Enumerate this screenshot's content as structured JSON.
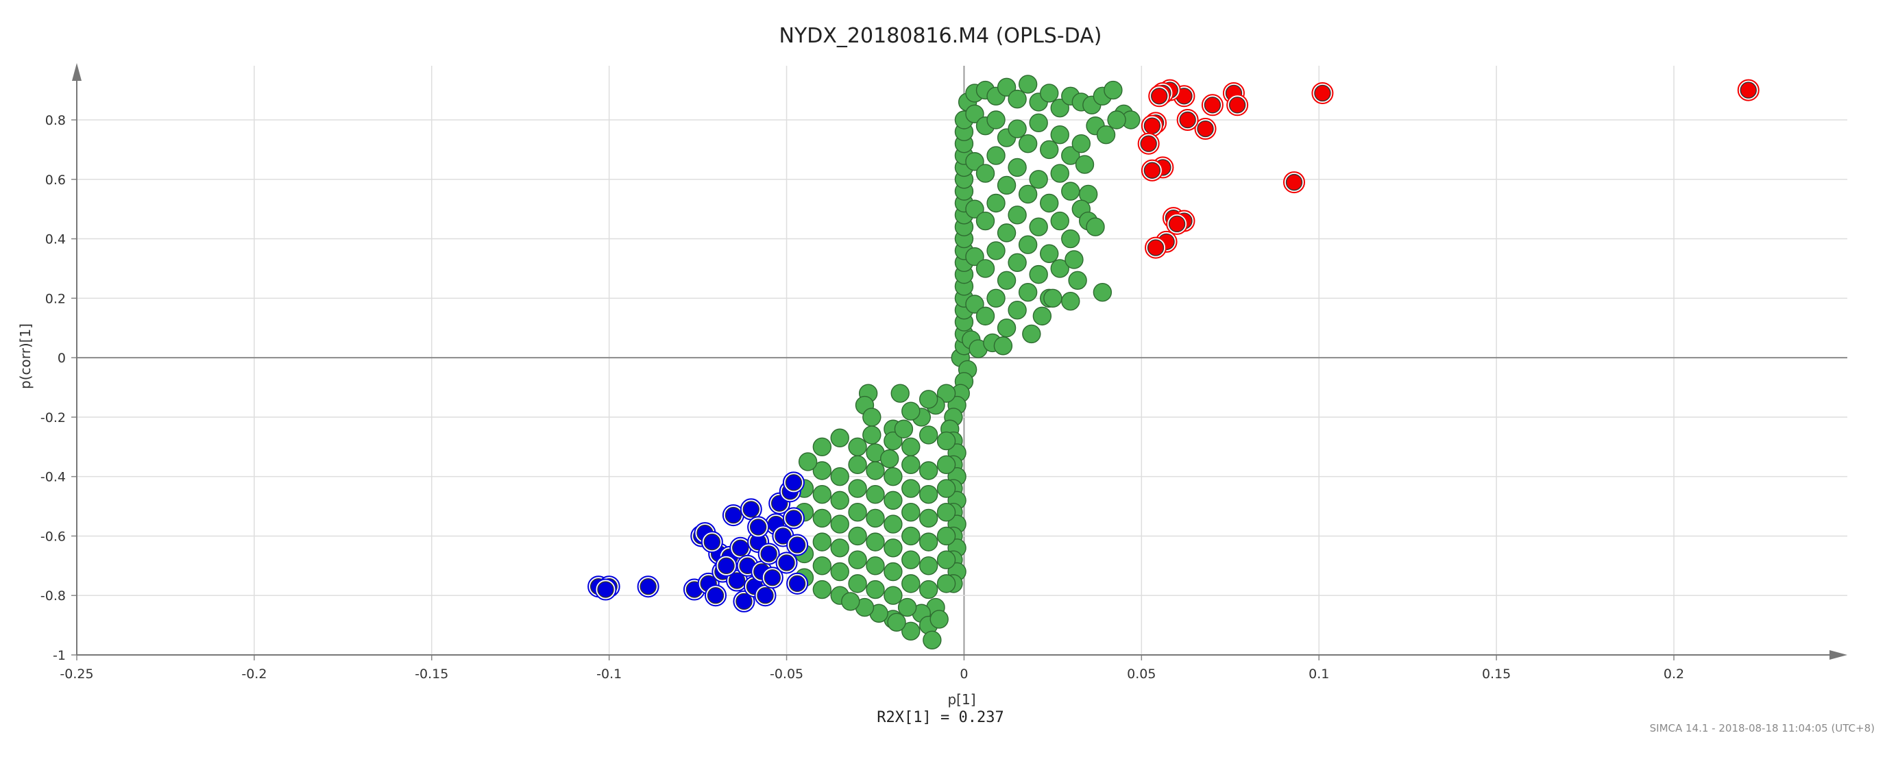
{
  "chart_data": {
    "type": "scatter",
    "title": "NYDX_20180816.M4 (OPLS-DA)",
    "xlabel": "p[1]",
    "ylabel": "p(corr)[1]",
    "xlim": [
      -0.25,
      0.245
    ],
    "ylim": [
      -1.0,
      0.95
    ],
    "x_ticks": [
      -0.25,
      -0.2,
      -0.15,
      -0.1,
      -0.05,
      0,
      0.05,
      0.1,
      0.15,
      0.2
    ],
    "x_tick_labels": [
      "-0.25",
      "-0.2",
      "-0.15",
      "-0.1",
      "-0.05",
      "0",
      "0.05",
      "0.1",
      "0.15",
      "0.2"
    ],
    "y_ticks": [
      -1.0,
      -0.8,
      -0.6,
      -0.4,
      -0.2,
      0.0,
      0.2,
      0.4,
      0.6,
      0.8
    ],
    "y_tick_labels": [
      "-1",
      "-0.8",
      "-0.6",
      "-0.4",
      "-0.2",
      "0",
      "0.2",
      "0.4",
      "0.6",
      "0.8"
    ],
    "grid": true,
    "annotation": "R2X[1] = 0.237",
    "footer": "SIMCA 14.1 - 2018-08-18 11:04:05 (UTC+8)",
    "series": [
      {
        "color": "#f20000",
        "points": [
          [
            0.221,
            0.9
          ],
          [
            0.101,
            0.89
          ],
          [
            0.093,
            0.59
          ],
          [
            0.076,
            0.89
          ],
          [
            0.077,
            0.85
          ],
          [
            0.07,
            0.85
          ],
          [
            0.068,
            0.77
          ],
          [
            0.063,
            0.8
          ],
          [
            0.062,
            0.88
          ],
          [
            0.058,
            0.9
          ],
          [
            0.056,
            0.89
          ],
          [
            0.055,
            0.88
          ],
          [
            0.054,
            0.79
          ],
          [
            0.053,
            0.78
          ],
          [
            0.052,
            0.72
          ],
          [
            0.056,
            0.64
          ],
          [
            0.053,
            0.63
          ],
          [
            0.059,
            0.47
          ],
          [
            0.062,
            0.46
          ],
          [
            0.06,
            0.45
          ],
          [
            0.057,
            0.39
          ],
          [
            0.054,
            0.37
          ]
        ]
      },
      {
        "color": "#0000dc",
        "points": [
          [
            -0.103,
            -0.77
          ],
          [
            -0.1,
            -0.77
          ],
          [
            -0.101,
            -0.78
          ],
          [
            -0.089,
            -0.77
          ],
          [
            -0.076,
            -0.78
          ],
          [
            -0.074,
            -0.6
          ],
          [
            -0.073,
            -0.59
          ],
          [
            -0.072,
            -0.76
          ],
          [
            -0.07,
            -0.8
          ],
          [
            -0.069,
            -0.66
          ],
          [
            -0.068,
            -0.72
          ],
          [
            -0.066,
            -0.67
          ],
          [
            -0.065,
            -0.53
          ],
          [
            -0.064,
            -0.75
          ],
          [
            -0.063,
            -0.64
          ],
          [
            -0.062,
            -0.82
          ],
          [
            -0.061,
            -0.7
          ],
          [
            -0.06,
            -0.51
          ],
          [
            -0.059,
            -0.77
          ],
          [
            -0.058,
            -0.62
          ],
          [
            -0.057,
            -0.72
          ],
          [
            -0.056,
            -0.8
          ],
          [
            -0.055,
            -0.66
          ],
          [
            -0.054,
            -0.74
          ],
          [
            -0.053,
            -0.56
          ],
          [
            -0.052,
            -0.49
          ],
          [
            -0.051,
            -0.6
          ],
          [
            -0.05,
            -0.69
          ],
          [
            -0.049,
            -0.45
          ],
          [
            -0.048,
            -0.54
          ],
          [
            -0.048,
            -0.42
          ],
          [
            -0.047,
            -0.76
          ],
          [
            -0.047,
            -0.63
          ],
          [
            -0.058,
            -0.57
          ],
          [
            -0.067,
            -0.7
          ],
          [
            -0.071,
            -0.62
          ]
        ]
      },
      {
        "color": "#4caf50",
        "points": [
          [
            -0.001,
            0.0
          ],
          [
            0.0,
            0.04
          ],
          [
            0.0,
            0.08
          ],
          [
            0.0,
            0.12
          ],
          [
            0.0,
            0.16
          ],
          [
            0.0,
            0.2
          ],
          [
            0.0,
            0.24
          ],
          [
            0.0,
            0.28
          ],
          [
            0.0,
            0.32
          ],
          [
            0.0,
            0.36
          ],
          [
            0.0,
            0.4
          ],
          [
            0.0,
            0.44
          ],
          [
            0.0,
            0.48
          ],
          [
            0.0,
            0.52
          ],
          [
            0.0,
            0.56
          ],
          [
            0.0,
            0.6
          ],
          [
            0.0,
            0.64
          ],
          [
            0.0,
            0.68
          ],
          [
            0.0,
            0.72
          ],
          [
            0.0,
            0.76
          ],
          [
            0.0,
            0.8
          ],
          [
            0.001,
            0.86
          ],
          [
            0.003,
            0.89
          ],
          [
            0.006,
            0.9
          ],
          [
            0.009,
            0.88
          ],
          [
            0.012,
            0.91
          ],
          [
            0.015,
            0.87
          ],
          [
            0.018,
            0.92
          ],
          [
            0.021,
            0.86
          ],
          [
            0.024,
            0.89
          ],
          [
            0.027,
            0.84
          ],
          [
            0.03,
            0.88
          ],
          [
            0.033,
            0.86
          ],
          [
            0.036,
            0.85
          ],
          [
            0.039,
            0.88
          ],
          [
            0.042,
            0.9
          ],
          [
            0.045,
            0.82
          ],
          [
            0.047,
            0.8
          ],
          [
            0.003,
            0.82
          ],
          [
            0.006,
            0.78
          ],
          [
            0.009,
            0.8
          ],
          [
            0.012,
            0.74
          ],
          [
            0.015,
            0.77
          ],
          [
            0.018,
            0.72
          ],
          [
            0.021,
            0.79
          ],
          [
            0.024,
            0.7
          ],
          [
            0.027,
            0.75
          ],
          [
            0.03,
            0.68
          ],
          [
            0.033,
            0.72
          ],
          [
            0.037,
            0.78
          ],
          [
            0.04,
            0.75
          ],
          [
            0.043,
            0.8
          ],
          [
            0.003,
            0.66
          ],
          [
            0.006,
            0.62
          ],
          [
            0.009,
            0.68
          ],
          [
            0.012,
            0.58
          ],
          [
            0.015,
            0.64
          ],
          [
            0.018,
            0.55
          ],
          [
            0.021,
            0.6
          ],
          [
            0.024,
            0.52
          ],
          [
            0.027,
            0.62
          ],
          [
            0.03,
            0.56
          ],
          [
            0.034,
            0.65
          ],
          [
            0.035,
            0.55
          ],
          [
            0.003,
            0.5
          ],
          [
            0.006,
            0.46
          ],
          [
            0.009,
            0.52
          ],
          [
            0.012,
            0.42
          ],
          [
            0.015,
            0.48
          ],
          [
            0.018,
            0.38
          ],
          [
            0.021,
            0.44
          ],
          [
            0.024,
            0.35
          ],
          [
            0.027,
            0.46
          ],
          [
            0.03,
            0.4
          ],
          [
            0.033,
            0.5
          ],
          [
            0.035,
            0.46
          ],
          [
            0.037,
            0.44
          ],
          [
            0.003,
            0.34
          ],
          [
            0.006,
            0.3
          ],
          [
            0.009,
            0.36
          ],
          [
            0.012,
            0.26
          ],
          [
            0.015,
            0.32
          ],
          [
            0.018,
            0.22
          ],
          [
            0.021,
            0.28
          ],
          [
            0.024,
            0.2
          ],
          [
            0.027,
            0.3
          ],
          [
            0.031,
            0.33
          ],
          [
            0.032,
            0.26
          ],
          [
            0.003,
            0.18
          ],
          [
            0.006,
            0.14
          ],
          [
            0.009,
            0.2
          ],
          [
            0.012,
            0.1
          ],
          [
            0.015,
            0.16
          ],
          [
            0.019,
            0.08
          ],
          [
            0.022,
            0.14
          ],
          [
            0.025,
            0.2
          ],
          [
            0.03,
            0.19
          ],
          [
            0.039,
            0.22
          ],
          [
            0.002,
            0.06
          ],
          [
            0.004,
            0.03
          ],
          [
            0.008,
            0.05
          ],
          [
            0.011,
            0.04
          ],
          [
            0.001,
            -0.04
          ],
          [
            0.0,
            -0.08
          ],
          [
            -0.001,
            -0.12
          ],
          [
            -0.002,
            -0.16
          ],
          [
            -0.003,
            -0.2
          ],
          [
            -0.004,
            -0.24
          ],
          [
            -0.003,
            -0.28
          ],
          [
            -0.002,
            -0.32
          ],
          [
            -0.003,
            -0.36
          ],
          [
            -0.002,
            -0.4
          ],
          [
            -0.003,
            -0.44
          ],
          [
            -0.002,
            -0.48
          ],
          [
            -0.003,
            -0.52
          ],
          [
            -0.002,
            -0.56
          ],
          [
            -0.003,
            -0.6
          ],
          [
            -0.002,
            -0.64
          ],
          [
            -0.003,
            -0.68
          ],
          [
            -0.002,
            -0.72
          ],
          [
            -0.003,
            -0.76
          ],
          [
            -0.005,
            -0.12
          ],
          [
            -0.008,
            -0.16
          ],
          [
            -0.01,
            -0.14
          ],
          [
            -0.012,
            -0.2
          ],
          [
            -0.015,
            -0.18
          ],
          [
            -0.018,
            -0.12
          ],
          [
            -0.02,
            -0.24
          ],
          [
            -0.027,
            -0.12
          ],
          [
            -0.028,
            -0.16
          ],
          [
            -0.026,
            -0.2
          ],
          [
            -0.005,
            -0.28
          ],
          [
            -0.01,
            -0.26
          ],
          [
            -0.015,
            -0.3
          ],
          [
            -0.02,
            -0.28
          ],
          [
            -0.025,
            -0.32
          ],
          [
            -0.03,
            -0.3
          ],
          [
            -0.035,
            -0.27
          ],
          [
            -0.04,
            -0.3
          ],
          [
            -0.005,
            -0.36
          ],
          [
            -0.01,
            -0.38
          ],
          [
            -0.015,
            -0.36
          ],
          [
            -0.02,
            -0.4
          ],
          [
            -0.025,
            -0.38
          ],
          [
            -0.03,
            -0.36
          ],
          [
            -0.035,
            -0.4
          ],
          [
            -0.04,
            -0.38
          ],
          [
            -0.044,
            -0.35
          ],
          [
            -0.005,
            -0.44
          ],
          [
            -0.01,
            -0.46
          ],
          [
            -0.015,
            -0.44
          ],
          [
            -0.02,
            -0.48
          ],
          [
            -0.025,
            -0.46
          ],
          [
            -0.03,
            -0.44
          ],
          [
            -0.035,
            -0.48
          ],
          [
            -0.04,
            -0.46
          ],
          [
            -0.045,
            -0.44
          ],
          [
            -0.005,
            -0.52
          ],
          [
            -0.01,
            -0.54
          ],
          [
            -0.015,
            -0.52
          ],
          [
            -0.02,
            -0.56
          ],
          [
            -0.025,
            -0.54
          ],
          [
            -0.03,
            -0.52
          ],
          [
            -0.035,
            -0.56
          ],
          [
            -0.04,
            -0.54
          ],
          [
            -0.045,
            -0.52
          ],
          [
            -0.005,
            -0.6
          ],
          [
            -0.01,
            -0.62
          ],
          [
            -0.015,
            -0.6
          ],
          [
            -0.02,
            -0.64
          ],
          [
            -0.025,
            -0.62
          ],
          [
            -0.03,
            -0.6
          ],
          [
            -0.035,
            -0.64
          ],
          [
            -0.04,
            -0.62
          ],
          [
            -0.045,
            -0.66
          ],
          [
            -0.005,
            -0.68
          ],
          [
            -0.01,
            -0.7
          ],
          [
            -0.015,
            -0.68
          ],
          [
            -0.02,
            -0.72
          ],
          [
            -0.025,
            -0.7
          ],
          [
            -0.03,
            -0.68
          ],
          [
            -0.035,
            -0.72
          ],
          [
            -0.04,
            -0.7
          ],
          [
            -0.045,
            -0.74
          ],
          [
            -0.005,
            -0.76
          ],
          [
            -0.01,
            -0.78
          ],
          [
            -0.015,
            -0.76
          ],
          [
            -0.02,
            -0.8
          ],
          [
            -0.025,
            -0.78
          ],
          [
            -0.03,
            -0.76
          ],
          [
            -0.035,
            -0.8
          ],
          [
            -0.04,
            -0.78
          ],
          [
            -0.008,
            -0.84
          ],
          [
            -0.012,
            -0.86
          ],
          [
            -0.016,
            -0.84
          ],
          [
            -0.02,
            -0.88
          ],
          [
            -0.024,
            -0.86
          ],
          [
            -0.028,
            -0.84
          ],
          [
            -0.032,
            -0.82
          ],
          [
            -0.01,
            -0.9
          ],
          [
            -0.015,
            -0.92
          ],
          [
            -0.019,
            -0.89
          ],
          [
            -0.009,
            -0.95
          ],
          [
            -0.007,
            -0.88
          ],
          [
            -0.021,
            -0.34
          ],
          [
            -0.026,
            -0.26
          ],
          [
            -0.017,
            -0.24
          ]
        ]
      }
    ]
  }
}
